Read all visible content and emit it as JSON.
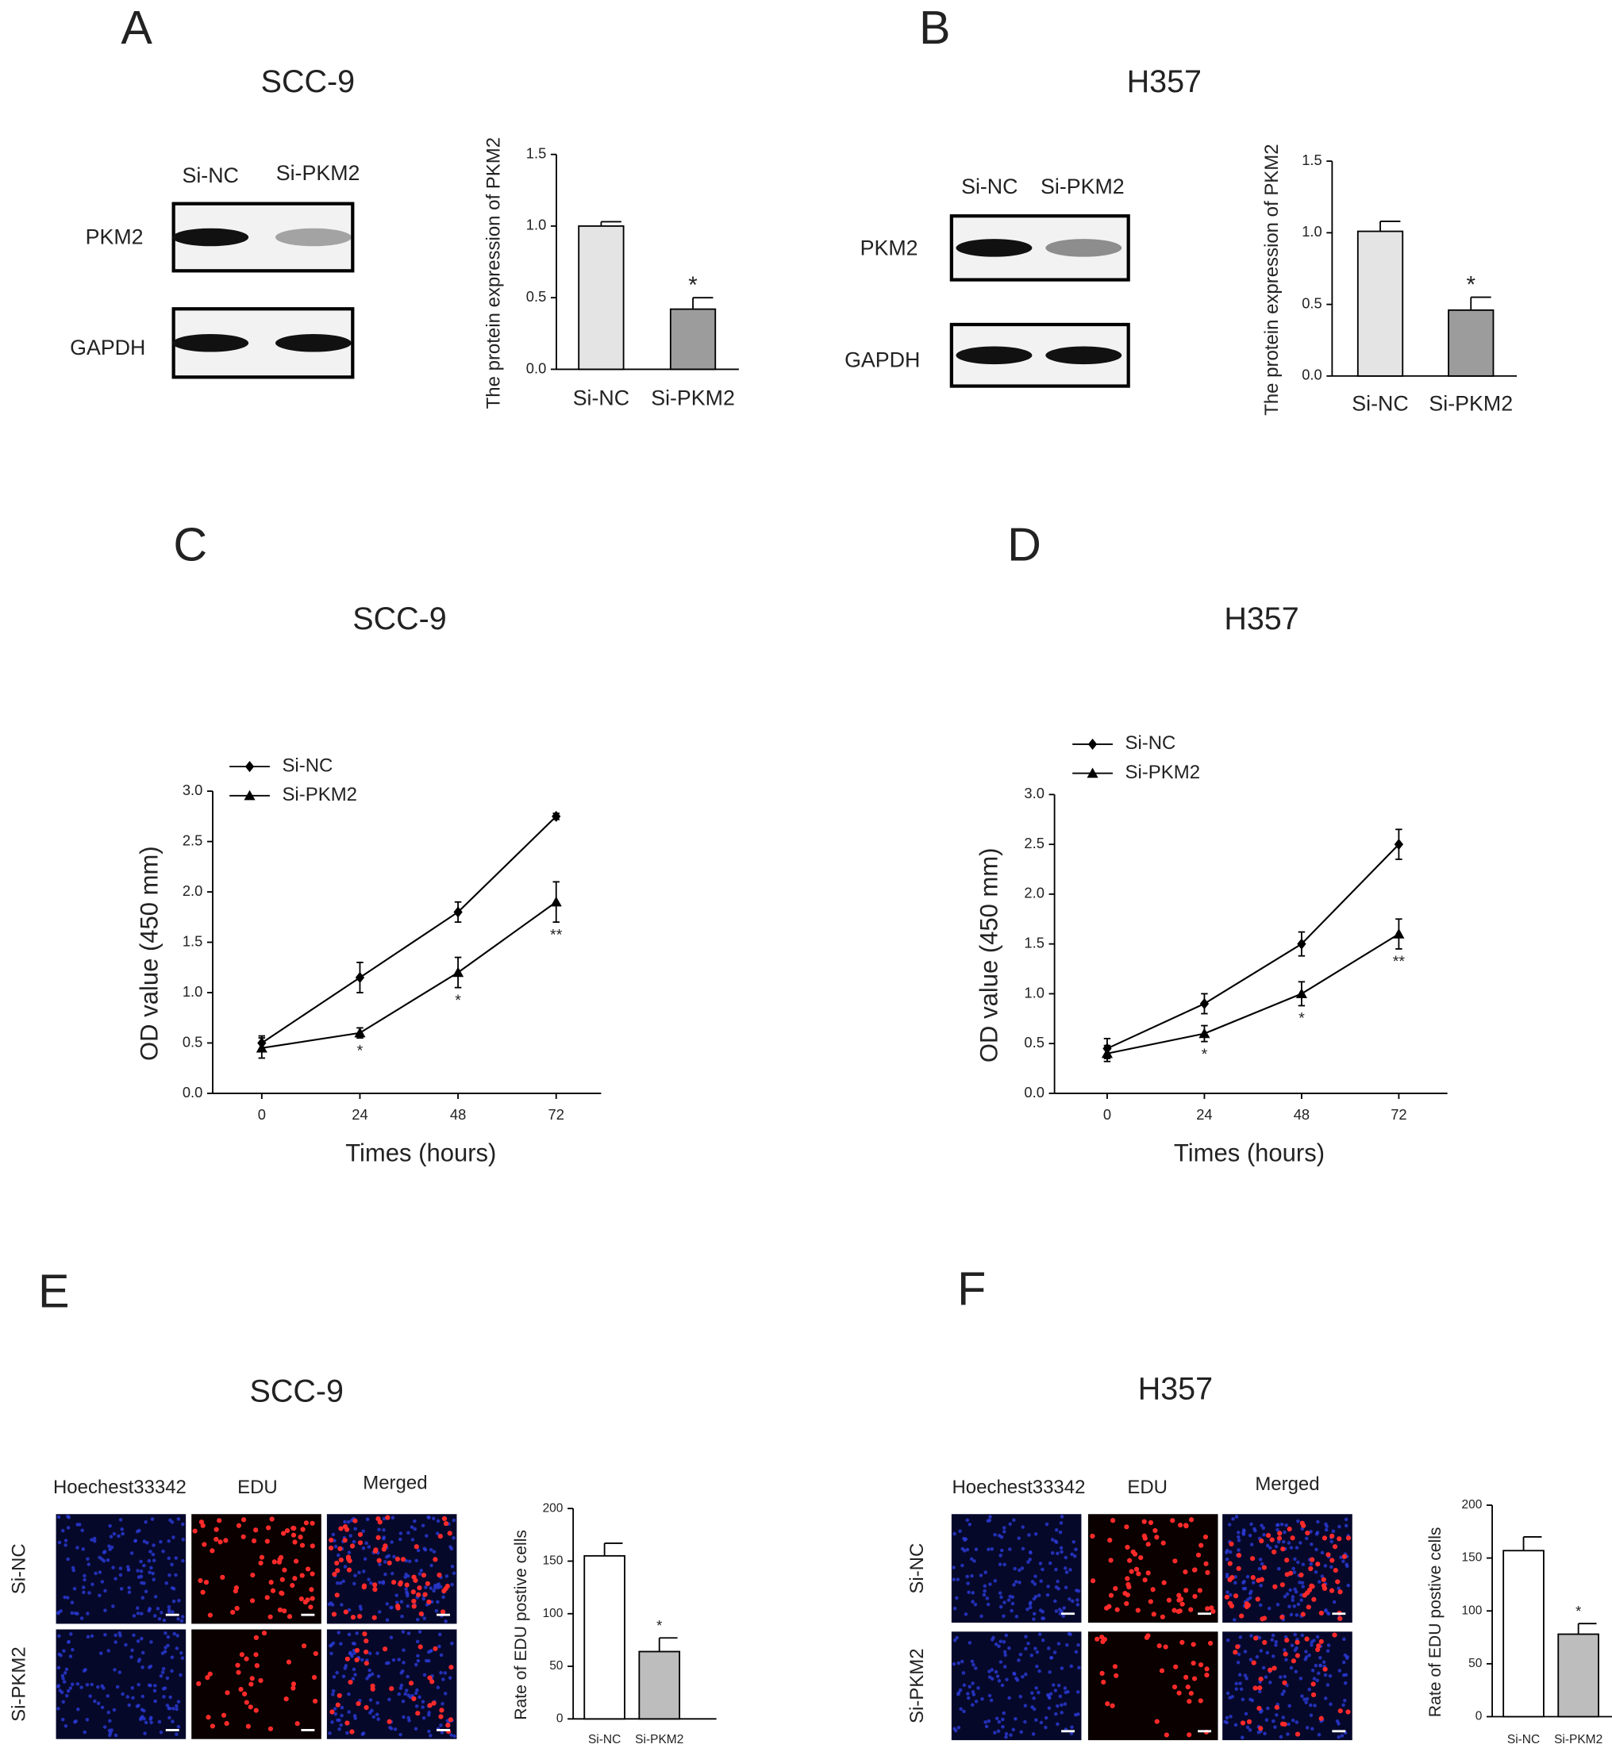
{
  "panels": [
    {
      "letter": "A",
      "title": "SCC-9",
      "blot": {
        "lanes": [
          "Si-NC",
          "Si-PKM2"
        ],
        "rows": [
          "PKM2",
          "GAPDH"
        ]
      }
    },
    {
      "letter": "B",
      "title": "H357",
      "blot": {
        "lanes": [
          "Si-NC",
          "Si-PKM2"
        ],
        "rows": [
          "PKM2",
          "GAPDH"
        ]
      }
    },
    {
      "letter": "C",
      "title": "SCC-9"
    },
    {
      "letter": "D",
      "title": "H357"
    },
    {
      "letter": "E",
      "title": "SCC-9",
      "images": {
        "columns": [
          "Hoechest33342",
          "EDU",
          "Merged"
        ],
        "rows": [
          "Si-NC",
          "Si-PKM2"
        ]
      }
    },
    {
      "letter": "F",
      "title": "H357",
      "images": {
        "columns": [
          "Hoechest33342",
          "EDU",
          "Merged"
        ],
        "rows": [
          "Si-NC",
          "Si-PKM2"
        ]
      }
    }
  ],
  "chart_data": [
    {
      "type": "bar",
      "ylabel": "The protein expression of PKM2",
      "categories": [
        "Si-NC",
        "Si-PKM2"
      ],
      "values": [
        1.0,
        0.42
      ],
      "errors": [
        0.03,
        0.08
      ],
      "colors": [
        "#e4e4e4",
        "#9c9c9c"
      ],
      "annotations": [
        null,
        "*"
      ],
      "ylim": [
        0,
        1.5
      ],
      "yticks": [
        {
          "value": 0,
          "label": "0.0"
        },
        0.5,
        {
          "value": 1,
          "label": "1.0"
        },
        1.5
      ]
    },
    {
      "type": "bar",
      "ylabel": "The protein expression of PKM2",
      "categories": [
        "Si-NC",
        "Si-PKM2"
      ],
      "values": [
        1.01,
        0.46
      ],
      "errors": [
        0.07,
        0.09
      ],
      "colors": [
        "#e4e4e4",
        "#9c9c9c"
      ],
      "annotations": [
        null,
        "*"
      ],
      "ylim": [
        0,
        1.5
      ],
      "yticks": [
        {
          "value": 0,
          "label": "0.0"
        },
        0.5,
        {
          "value": 1,
          "label": "1.0"
        },
        1.5
      ]
    },
    {
      "type": "line",
      "xlabel": "Times (hours)",
      "ylabel": "OD value (450 mm)",
      "x": [
        0,
        24,
        48,
        72
      ],
      "xlim": [
        -12,
        83
      ],
      "xticks": [
        0,
        24,
        48,
        72
      ],
      "ylim": [
        0,
        3
      ],
      "yticks": [
        {
          "value": 0,
          "label": "0.0"
        },
        0.5,
        {
          "value": 1,
          "label": "1.0"
        },
        1.5,
        {
          "value": 2,
          "label": "2.0"
        },
        2.5,
        {
          "value": 3,
          "label": "3.0"
        }
      ],
      "legend": "upper left",
      "series": [
        {
          "name": "Si-NC",
          "marker": "diamond",
          "color": "#000000",
          "values": [
            0.5,
            1.15,
            1.8,
            2.75
          ],
          "errors": [
            0.07,
            0.15,
            0.1,
            0.03
          ]
        },
        {
          "name": "Si-PKM2",
          "marker": "triangle",
          "color": "#000000",
          "values": [
            0.45,
            0.6,
            1.2,
            1.9
          ],
          "errors": [
            0.1,
            0.05,
            0.15,
            0.2
          ],
          "annotations": [
            null,
            "*",
            "*",
            "**"
          ]
        }
      ]
    },
    {
      "type": "line",
      "xlabel": "Times (hours)",
      "ylabel": "OD value (450 mm)",
      "x": [
        0,
        24,
        48,
        72
      ],
      "xlim": [
        -13,
        84
      ],
      "xticks": [
        0,
        24,
        48,
        72
      ],
      "ylim": [
        0,
        3
      ],
      "yticks": [
        {
          "value": 0,
          "label": "0.0"
        },
        0.5,
        {
          "value": 1,
          "label": "1.0"
        },
        1.5,
        {
          "value": 2,
          "label": "2.0"
        },
        2.5,
        {
          "value": 3,
          "label": "3.0"
        }
      ],
      "legend": "upper left",
      "series": [
        {
          "name": "Si-NC",
          "marker": "diamond",
          "color": "#000000",
          "values": [
            0.45,
            0.9,
            1.5,
            2.5
          ],
          "errors": [
            0.1,
            0.1,
            0.12,
            0.15
          ]
        },
        {
          "name": "Si-PKM2",
          "marker": "triangle",
          "color": "#000000",
          "values": [
            0.4,
            0.6,
            1.0,
            1.6
          ],
          "errors": [
            0.08,
            0.08,
            0.12,
            0.15
          ],
          "annotations": [
            null,
            "*",
            "*",
            "**"
          ]
        }
      ]
    },
    {
      "type": "bar",
      "ylabel": "Rate of EDU postive cells",
      "categories": [
        "Si-NC",
        "Si-PKM2"
      ],
      "values": [
        155,
        64
      ],
      "errors": [
        12,
        13
      ],
      "colors": [
        "#ffffff",
        "#bdbdbd"
      ],
      "annotations": [
        null,
        "*"
      ],
      "ylim": [
        0,
        200
      ],
      "yticks": [
        0,
        50,
        100,
        150,
        200
      ]
    },
    {
      "type": "bar",
      "ylabel": "Rate of EDU postive cells",
      "categories": [
        "Si-NC",
        "Si-PKM2"
      ],
      "values": [
        157,
        78
      ],
      "errors": [
        13,
        10
      ],
      "colors": [
        "#ffffff",
        "#bdbdbd"
      ],
      "annotations": [
        null,
        "*"
      ],
      "ylim": [
        0,
        200
      ],
      "yticks": [
        0,
        50,
        100,
        150,
        200
      ]
    }
  ]
}
